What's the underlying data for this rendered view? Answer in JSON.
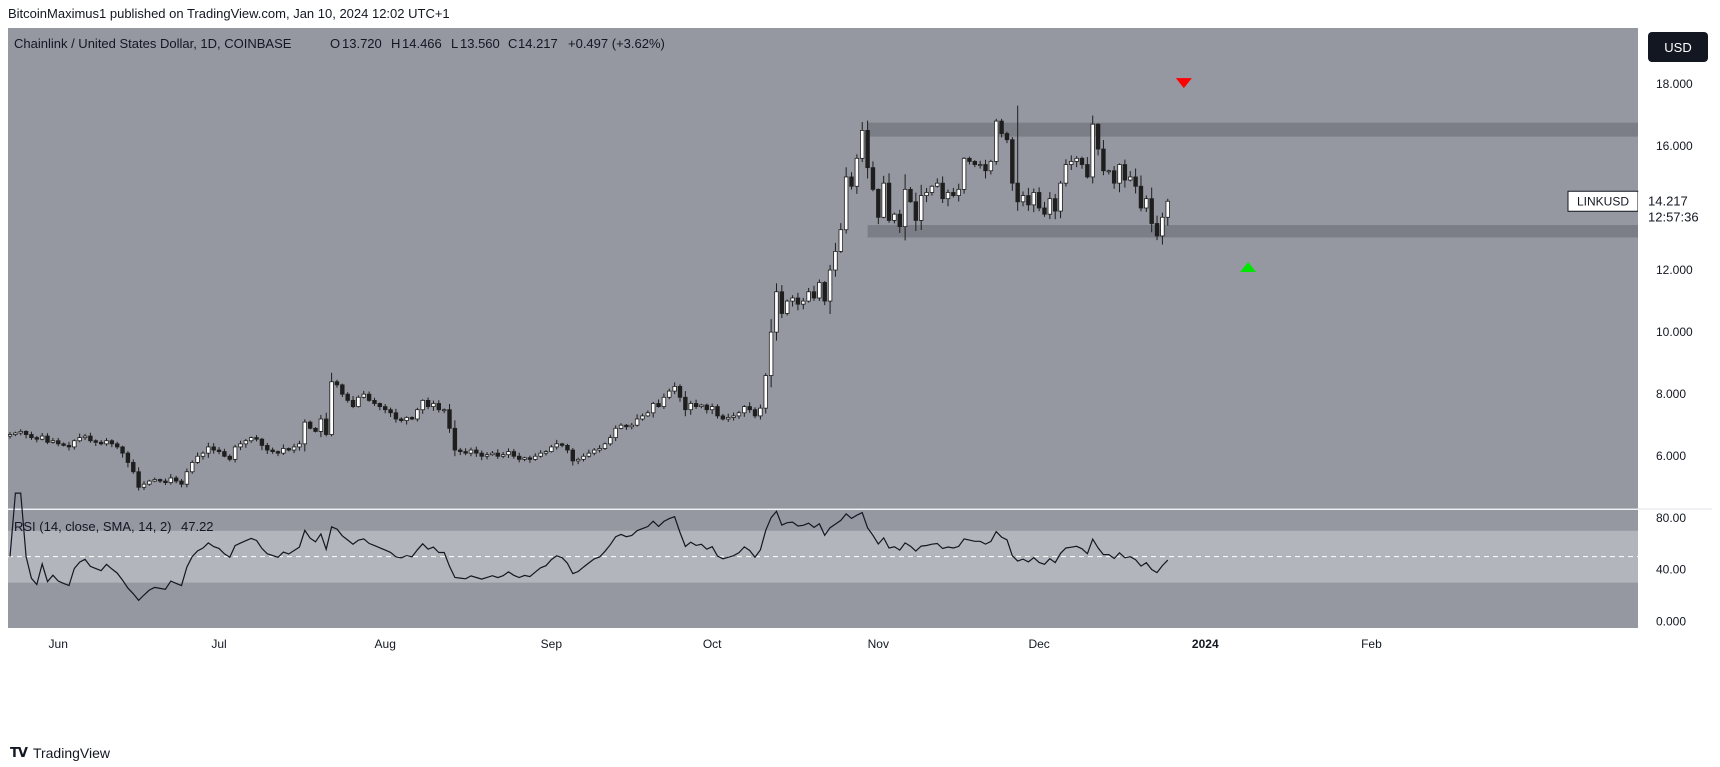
{
  "header": {
    "publisher": "BitcoinMaximus1 published on TradingView.com, Jan 10, 2024 12:02 UTC+1"
  },
  "legend": {
    "symbol_line": "Chainlink / United States Dollar, 1D, COINBASE",
    "o_label": "O",
    "o_value": "13.720",
    "h_label": "H",
    "h_value": "14.466",
    "l_label": "L",
    "l_value": "13.560",
    "c_label": "C",
    "c_value": "14.217",
    "change": "+0.497 (+3.62%)"
  },
  "currency_button": "USD",
  "price_tag": {
    "symbol": "LINKUSD",
    "price": "14.217",
    "countdown": "12:57:36"
  },
  "rsi_legend": {
    "label": "RSI (14, close, SMA, 14, 2)",
    "value": "47.22"
  },
  "footer": {
    "brand": "TradingView",
    "logo": "TV"
  },
  "colors": {
    "pane_bg": "#9598a1",
    "candle_up": "#ffffff",
    "candle_down": "#1e1e1e",
    "wick": "#1e1e1e",
    "zone": "#7b7e86",
    "rsi_band": "#b2b5bc",
    "marker_down": "#ff0000",
    "marker_up": "#00e600"
  },
  "chart_data": [
    {
      "type": "candlestick",
      "ylim": [
        4.3,
        19.8
      ],
      "yticks": [
        "18.000",
        "16.000",
        "14.000",
        "12.000",
        "10.000",
        "8.000",
        "6.000"
      ],
      "ytick_values": [
        18,
        16,
        14,
        12,
        10,
        8,
        6
      ],
      "xticks": [
        "Jun",
        "Jul",
        "Aug",
        "Sep",
        "Oct",
        "Nov",
        "Dec",
        "2024",
        "Feb"
      ],
      "xtick_days": [
        9,
        39,
        70,
        101,
        131,
        162,
        192,
        223,
        254
      ],
      "resistance_zone": [
        16.3,
        16.75
      ],
      "support_zone": [
        13.05,
        13.45
      ],
      "markers": [
        {
          "type": "down-triangle",
          "day": 219,
          "price": 17.8
        },
        {
          "type": "up-triangle",
          "day": 231,
          "price": 12.0
        }
      ],
      "closes": [
        6.7,
        6.75,
        6.8,
        6.7,
        6.6,
        6.55,
        6.65,
        6.45,
        6.5,
        6.4,
        6.35,
        6.3,
        6.5,
        6.6,
        6.65,
        6.5,
        6.45,
        6.4,
        6.5,
        6.4,
        6.3,
        6.1,
        5.8,
        5.5,
        5.0,
        5.1,
        5.2,
        5.25,
        5.2,
        5.15,
        5.3,
        5.2,
        5.1,
        5.5,
        5.8,
        6.0,
        6.1,
        6.3,
        6.2,
        6.15,
        6.0,
        5.9,
        6.3,
        6.4,
        6.5,
        6.6,
        6.55,
        6.35,
        6.2,
        6.15,
        6.1,
        6.25,
        6.2,
        6.3,
        6.4,
        7.1,
        6.9,
        6.8,
        7.2,
        6.7,
        8.4,
        8.3,
        8.0,
        7.8,
        7.6,
        7.9,
        8.0,
        7.8,
        7.7,
        7.6,
        7.5,
        7.4,
        7.2,
        7.15,
        7.25,
        7.2,
        7.5,
        7.8,
        7.6,
        7.7,
        7.5,
        7.5,
        6.9,
        6.2,
        6.15,
        6.1,
        6.2,
        6.1,
        6.0,
        6.05,
        6.1,
        6.0,
        6.05,
        6.15,
        6.0,
        5.9,
        5.95,
        5.9,
        6.0,
        6.1,
        6.15,
        6.3,
        6.4,
        6.35,
        6.2,
        5.85,
        5.9,
        6.0,
        6.1,
        6.2,
        6.25,
        6.4,
        6.6,
        6.9,
        7.0,
        6.95,
        7.0,
        7.2,
        7.3,
        7.4,
        7.7,
        7.6,
        7.9,
        8.1,
        8.25,
        7.9,
        7.5,
        7.7,
        7.6,
        7.65,
        7.5,
        7.6,
        7.3,
        7.2,
        7.25,
        7.3,
        7.4,
        7.6,
        7.5,
        7.3,
        7.55,
        8.6,
        10.0,
        11.3,
        10.6,
        11.0,
        11.1,
        10.9,
        11.0,
        11.3,
        11.1,
        11.6,
        11.0,
        12.0,
        12.6,
        13.3,
        15.0,
        14.7,
        15.6,
        16.5,
        15.3,
        14.6,
        13.7,
        14.8,
        13.6,
        13.8,
        13.4,
        14.6,
        14.2,
        13.6,
        14.4,
        14.5,
        14.7,
        14.8,
        14.3,
        14.5,
        14.4,
        14.6,
        15.6,
        15.5,
        15.4,
        15.4,
        15.2,
        15.5,
        16.8,
        16.4,
        16.2,
        14.8,
        14.2,
        14.4,
        14.1,
        14.5,
        14.0,
        13.8,
        14.3,
        13.9,
        14.8,
        15.4,
        15.5,
        15.6,
        15.4,
        15.0,
        16.7,
        15.9,
        15.2,
        15.2,
        14.8,
        15.4,
        14.9,
        15.0,
        14.7,
        14.0,
        14.3,
        13.5,
        13.1,
        13.7,
        14.217
      ],
      "title": ""
    },
    {
      "type": "line",
      "name": "RSI (14, close, SMA, 14, 2)",
      "ylim": [
        -5,
        86
      ],
      "yticks": [
        "80.00",
        "40.00",
        "0.000"
      ],
      "ytick_values": [
        80,
        40,
        0
      ],
      "band": [
        30,
        70
      ],
      "midline": 50,
      "last_value": 47.22,
      "title": ""
    }
  ]
}
